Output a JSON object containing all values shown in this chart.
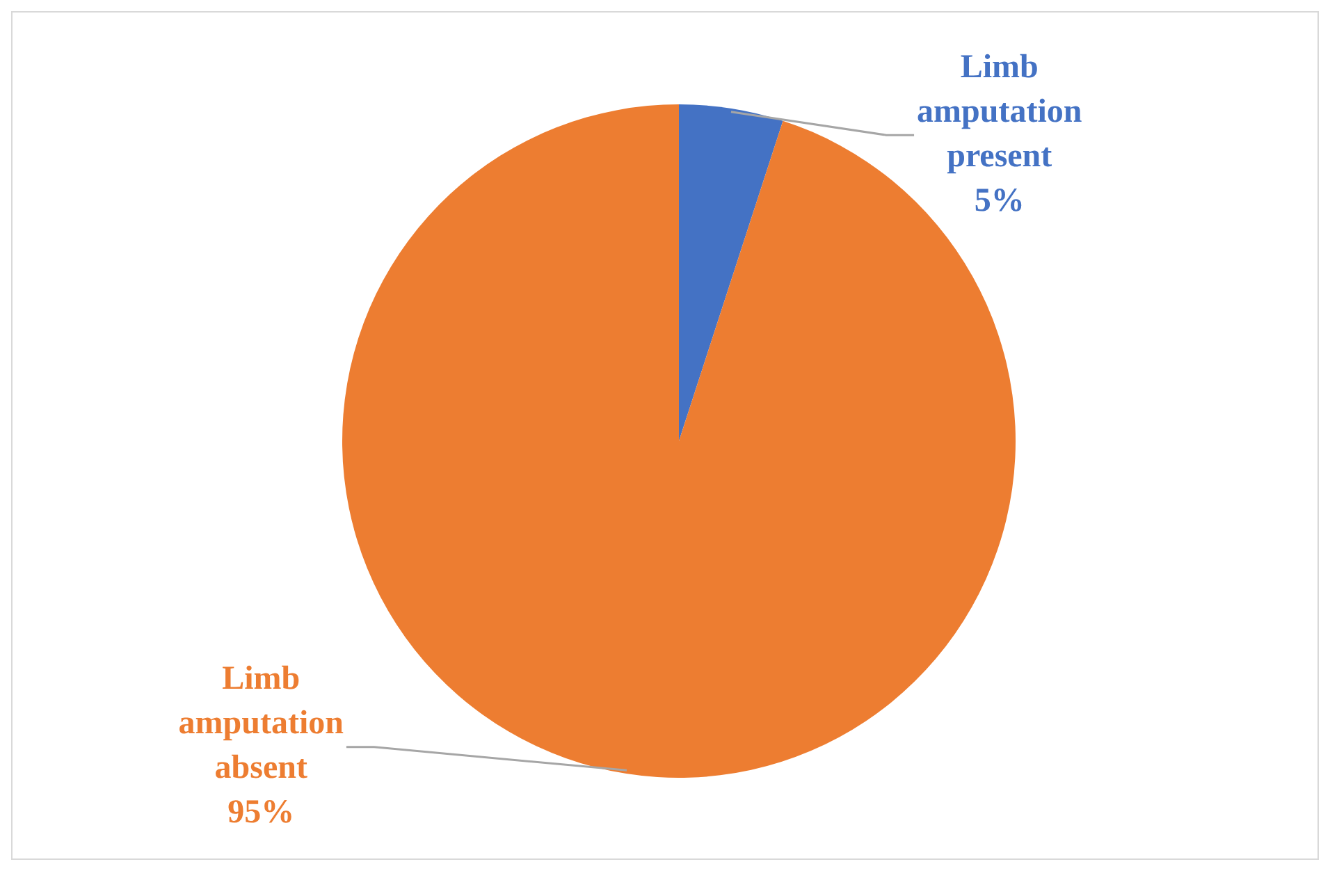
{
  "chart_data": {
    "type": "pie",
    "categories": [
      "Limb amputation present",
      "Limb amputation absent"
    ],
    "values": [
      5,
      95
    ],
    "colors": [
      "#4472c4",
      "#ed7d31"
    ],
    "value_labels": [
      "5%",
      "95%"
    ],
    "legend": false
  }
}
